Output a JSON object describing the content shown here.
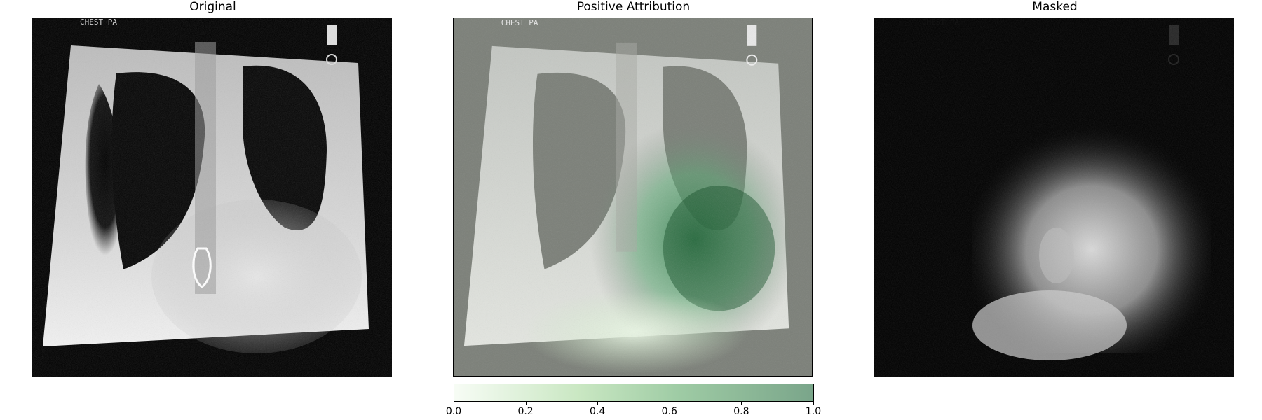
{
  "panels": {
    "original": {
      "title": "Original"
    },
    "attribution": {
      "title": "Positive Attribution"
    },
    "masked": {
      "title": "Masked"
    }
  },
  "image_text": "CHEST PA",
  "colorbar": {
    "ticks": [
      "0.0",
      "0.2",
      "0.4",
      "0.6",
      "0.8",
      "1.0"
    ],
    "min": 0.0,
    "max": 1.0,
    "colors": [
      "#f7fcf5",
      "#7aa58a"
    ]
  },
  "colors": {
    "attribution_background": "#7b7f78",
    "attribution_high": "#0d4a22"
  }
}
